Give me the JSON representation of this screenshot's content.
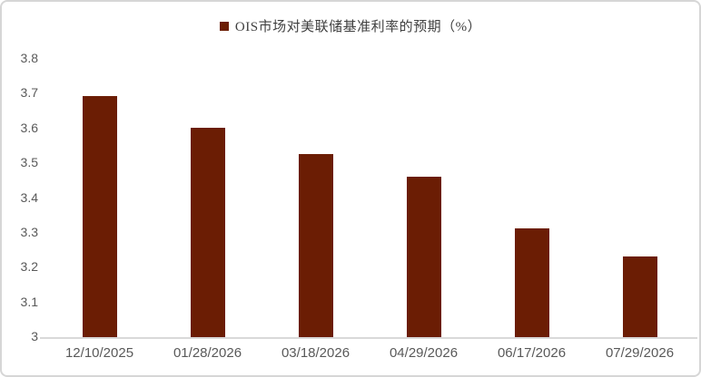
{
  "frame": {
    "background": "#ffffff",
    "border_color": "#d6d6d6"
  },
  "legend": {
    "marker_icon": "filled-square",
    "marker_color": "#6b1d04"
  },
  "chart_data": {
    "type": "bar",
    "title": "OIS市场对美联储基准利率的预期（%）",
    "categories": [
      "12/10/2025",
      "01/28/2026",
      "03/18/2026",
      "04/29/2026",
      "06/17/2026",
      "07/29/2026"
    ],
    "values": [
      3.695,
      3.605,
      3.53,
      3.465,
      3.315,
      3.235
    ],
    "xlabel": "",
    "ylabel": "",
    "ylim": [
      3,
      3.8
    ],
    "ytick_labels": [
      "3",
      "3.1",
      "3.2",
      "3.3",
      "3.4",
      "3.5",
      "3.6",
      "3.7",
      "3.8"
    ],
    "ytick_values": [
      3,
      3.1,
      3.2,
      3.3,
      3.4,
      3.5,
      3.6,
      3.7,
      3.8
    ],
    "bar_color": "#6b1d04",
    "axis_text_color": "#595959",
    "axis_line_color": "#d9d9d9",
    "grid": false,
    "legend_position": "top-center"
  }
}
